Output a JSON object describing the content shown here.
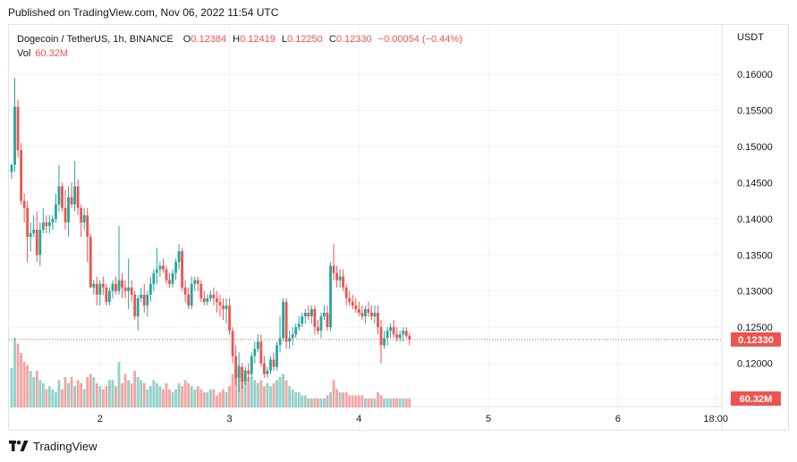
{
  "published": "Published on TradingView.com, Nov 06, 2022 11:54 UTC",
  "legend": {
    "symbol": "Dogecoin / TetherUS, 1h, BINANCE",
    "open_label": "O",
    "open": "0.12384",
    "high_label": "H",
    "high": "0.12419",
    "low_label": "L",
    "low": "0.12250",
    "close_label": "C",
    "close": "0.12330",
    "change": "−0.00054 (−0.44%)",
    "volume_label": "Vol",
    "volume": "60.32M"
  },
  "currency": "USDT",
  "price_labels": [
    "0.16000",
    "0.15500",
    "0.15000",
    "0.14500",
    "0.14000",
    "0.13500",
    "0.13000",
    "0.12500",
    "0.12000",
    "0.11500"
  ],
  "time_labels": [
    "2",
    "3",
    "4",
    "5",
    "6",
    "18:00"
  ],
  "last_price_badge": "0.12330",
  "volume_badge": "60.32M",
  "footer": {
    "brand": "TradingView",
    "logo_icon": "tradingview-logo-icon"
  },
  "colors": {
    "up": "#26a69a",
    "down": "#ef5350",
    "vol_up": "#8fd1c9",
    "vol_down": "#f5a3a1",
    "grid": "#f0f3fa"
  },
  "chart_data": {
    "type": "candlestick",
    "title": "Dogecoin / TetherUS, 1h, BINANCE",
    "price_axis": {
      "min": 0.1145,
      "max": 0.1625,
      "ticks": [
        0.16,
        0.155,
        0.15,
        0.145,
        0.14,
        0.135,
        0.13,
        0.125,
        0.12,
        0.115
      ]
    },
    "x_ticks": [
      {
        "label": "2",
        "index": 28
      },
      {
        "label": "3",
        "index": 69
      },
      {
        "label": "4",
        "index": 110
      },
      {
        "label": "5",
        "index": 151
      },
      {
        "label": "6",
        "index": 192
      },
      {
        "label": "18:00",
        "index": 223
      }
    ],
    "last_price": 0.1233,
    "candles": [
      [
        0.1465,
        0.1475,
        0.1455,
        0.1475,
        13
      ],
      [
        0.1475,
        0.1595,
        0.1465,
        0.1555,
        23
      ],
      [
        0.1555,
        0.1565,
        0.1485,
        0.1495,
        21
      ],
      [
        0.1495,
        0.1505,
        0.142,
        0.1425,
        18
      ],
      [
        0.1425,
        0.1435,
        0.1395,
        0.1415,
        15
      ],
      [
        0.1415,
        0.1425,
        0.134,
        0.1375,
        14
      ],
      [
        0.1375,
        0.1395,
        0.1355,
        0.138,
        12
      ],
      [
        0.138,
        0.1405,
        0.1375,
        0.1385,
        10
      ],
      [
        0.1385,
        0.141,
        0.134,
        0.135,
        12
      ],
      [
        0.135,
        0.1395,
        0.1335,
        0.1385,
        9
      ],
      [
        0.1385,
        0.1415,
        0.138,
        0.1395,
        8
      ],
      [
        0.1395,
        0.1405,
        0.138,
        0.139,
        6
      ],
      [
        0.139,
        0.1405,
        0.138,
        0.1395,
        7
      ],
      [
        0.1395,
        0.1405,
        0.1385,
        0.14,
        6
      ],
      [
        0.14,
        0.1435,
        0.1395,
        0.142,
        5
      ],
      [
        0.142,
        0.1475,
        0.141,
        0.1445,
        9
      ],
      [
        0.1445,
        0.145,
        0.141,
        0.1415,
        6
      ],
      [
        0.1415,
        0.144,
        0.1385,
        0.1395,
        10
      ],
      [
        0.1395,
        0.1445,
        0.1375,
        0.143,
        8
      ],
      [
        0.143,
        0.145,
        0.1415,
        0.142,
        10
      ],
      [
        0.142,
        0.148,
        0.141,
        0.1445,
        7
      ],
      [
        0.1445,
        0.1455,
        0.1405,
        0.1415,
        9
      ],
      [
        0.1415,
        0.142,
        0.1375,
        0.1395,
        8
      ],
      [
        0.1395,
        0.1415,
        0.1385,
        0.1405,
        6
      ],
      [
        0.1405,
        0.1415,
        0.134,
        0.1375,
        10
      ],
      [
        0.1375,
        0.138,
        0.1305,
        0.1305,
        11
      ],
      [
        0.1305,
        0.1315,
        0.1295,
        0.131,
        10
      ],
      [
        0.131,
        0.132,
        0.128,
        0.1295,
        8
      ],
      [
        0.1295,
        0.1315,
        0.128,
        0.131,
        7
      ],
      [
        0.131,
        0.132,
        0.1295,
        0.1305,
        6
      ],
      [
        0.1305,
        0.131,
        0.128,
        0.1285,
        7
      ],
      [
        0.1285,
        0.1305,
        0.128,
        0.13,
        9
      ],
      [
        0.13,
        0.1315,
        0.129,
        0.131,
        9
      ],
      [
        0.131,
        0.132,
        0.1295,
        0.13,
        7
      ],
      [
        0.13,
        0.139,
        0.1295,
        0.1315,
        15
      ],
      [
        0.1315,
        0.1325,
        0.129,
        0.1305,
        8
      ],
      [
        0.1305,
        0.1315,
        0.129,
        0.13,
        11
      ],
      [
        0.13,
        0.1345,
        0.1275,
        0.1305,
        9
      ],
      [
        0.1305,
        0.1315,
        0.1285,
        0.1295,
        8
      ],
      [
        0.1295,
        0.13,
        0.126,
        0.1265,
        12
      ],
      [
        0.1265,
        0.1295,
        0.1245,
        0.129,
        10
      ],
      [
        0.129,
        0.1305,
        0.1285,
        0.1295,
        9
      ],
      [
        0.1295,
        0.131,
        0.127,
        0.128,
        8
      ],
      [
        0.128,
        0.13,
        0.1265,
        0.1295,
        6
      ],
      [
        0.1295,
        0.132,
        0.1285,
        0.131,
        7
      ],
      [
        0.131,
        0.133,
        0.13,
        0.1325,
        9
      ],
      [
        0.1325,
        0.136,
        0.131,
        0.133,
        8
      ],
      [
        0.133,
        0.134,
        0.132,
        0.1335,
        7
      ],
      [
        0.1335,
        0.1345,
        0.1325,
        0.133,
        6
      ],
      [
        0.133,
        0.1335,
        0.131,
        0.1315,
        8
      ],
      [
        0.1315,
        0.1325,
        0.1305,
        0.131,
        6
      ],
      [
        0.131,
        0.133,
        0.1305,
        0.1325,
        5
      ],
      [
        0.1325,
        0.1345,
        0.1315,
        0.134,
        6
      ],
      [
        0.134,
        0.1365,
        0.133,
        0.1355,
        8
      ],
      [
        0.1355,
        0.136,
        0.13,
        0.1305,
        7
      ],
      [
        0.1305,
        0.1315,
        0.1285,
        0.1295,
        9
      ],
      [
        0.1295,
        0.1305,
        0.1275,
        0.128,
        8
      ],
      [
        0.128,
        0.132,
        0.1275,
        0.131,
        7
      ],
      [
        0.131,
        0.132,
        0.13,
        0.1315,
        6
      ],
      [
        0.1315,
        0.132,
        0.13,
        0.131,
        7
      ],
      [
        0.131,
        0.1315,
        0.1285,
        0.129,
        6
      ],
      [
        0.129,
        0.13,
        0.128,
        0.1285,
        5
      ],
      [
        0.1285,
        0.1295,
        0.128,
        0.129,
        5
      ],
      [
        0.129,
        0.13,
        0.1285,
        0.1295,
        6
      ],
      [
        0.1295,
        0.1305,
        0.128,
        0.129,
        6
      ],
      [
        0.129,
        0.13,
        0.127,
        0.1285,
        4
      ],
      [
        0.1285,
        0.1295,
        0.1265,
        0.128,
        5
      ],
      [
        0.128,
        0.129,
        0.126,
        0.1275,
        6
      ],
      [
        0.1275,
        0.129,
        0.1255,
        0.128,
        5
      ],
      [
        0.128,
        0.129,
        0.124,
        0.1245,
        7
      ],
      [
        0.1245,
        0.125,
        0.12,
        0.121,
        11
      ],
      [
        0.121,
        0.1225,
        0.117,
        0.118,
        14
      ],
      [
        0.118,
        0.1215,
        0.116,
        0.1195,
        14
      ],
      [
        0.1195,
        0.12,
        0.1165,
        0.1175,
        13
      ],
      [
        0.1175,
        0.1195,
        0.117,
        0.119,
        12
      ],
      [
        0.119,
        0.12,
        0.1175,
        0.1185,
        10
      ],
      [
        0.1185,
        0.1215,
        0.118,
        0.121,
        10
      ],
      [
        0.121,
        0.123,
        0.12,
        0.122,
        9
      ],
      [
        0.122,
        0.124,
        0.1215,
        0.123,
        8
      ],
      [
        0.123,
        0.124,
        0.1195,
        0.12,
        9
      ],
      [
        0.12,
        0.121,
        0.118,
        0.1185,
        7
      ],
      [
        0.1185,
        0.1195,
        0.118,
        0.119,
        8
      ],
      [
        0.119,
        0.121,
        0.1185,
        0.1205,
        7
      ],
      [
        0.1205,
        0.1215,
        0.119,
        0.1195,
        8
      ],
      [
        0.1195,
        0.123,
        0.119,
        0.1225,
        9
      ],
      [
        0.1225,
        0.1265,
        0.1215,
        0.1235,
        10
      ],
      [
        0.1235,
        0.129,
        0.123,
        0.1285,
        11
      ],
      [
        0.1285,
        0.129,
        0.122,
        0.123,
        9
      ],
      [
        0.123,
        0.1245,
        0.122,
        0.1235,
        7
      ],
      [
        0.1235,
        0.125,
        0.1225,
        0.124,
        6
      ],
      [
        0.124,
        0.1255,
        0.1235,
        0.125,
        5
      ],
      [
        0.125,
        0.1265,
        0.1245,
        0.1255,
        5
      ],
      [
        0.1255,
        0.127,
        0.125,
        0.1265,
        4
      ],
      [
        0.1265,
        0.1275,
        0.1255,
        0.127,
        4
      ],
      [
        0.127,
        0.128,
        0.126,
        0.1265,
        3
      ],
      [
        0.1265,
        0.128,
        0.1255,
        0.1275,
        3
      ],
      [
        0.1275,
        0.128,
        0.124,
        0.125,
        3
      ],
      [
        0.125,
        0.126,
        0.124,
        0.1245,
        3
      ],
      [
        0.1245,
        0.127,
        0.1235,
        0.1265,
        3
      ],
      [
        0.1265,
        0.128,
        0.126,
        0.127,
        3
      ],
      [
        0.127,
        0.128,
        0.1245,
        0.125,
        4
      ],
      [
        0.125,
        0.134,
        0.1245,
        0.1335,
        5
      ],
      [
        0.1335,
        0.1365,
        0.1315,
        0.1325,
        9
      ],
      [
        0.1325,
        0.1335,
        0.1305,
        0.1315,
        6
      ],
      [
        0.1315,
        0.133,
        0.1305,
        0.132,
        5
      ],
      [
        0.132,
        0.133,
        0.13,
        0.1305,
        5
      ],
      [
        0.1305,
        0.131,
        0.128,
        0.129,
        5
      ],
      [
        0.129,
        0.13,
        0.128,
        0.1285,
        4
      ],
      [
        0.1285,
        0.1295,
        0.1275,
        0.128,
        4
      ],
      [
        0.128,
        0.129,
        0.127,
        0.1275,
        4
      ],
      [
        0.1275,
        0.1285,
        0.1265,
        0.127,
        4
      ],
      [
        0.127,
        0.128,
        0.126,
        0.1265,
        4
      ],
      [
        0.1265,
        0.128,
        0.1255,
        0.1275,
        3
      ],
      [
        0.1275,
        0.1285,
        0.1265,
        0.127,
        3
      ],
      [
        0.127,
        0.128,
        0.126,
        0.1265,
        3
      ],
      [
        0.1265,
        0.128,
        0.1255,
        0.127,
        3
      ],
      [
        0.127,
        0.128,
        0.124,
        0.125,
        5
      ],
      [
        0.125,
        0.126,
        0.12,
        0.1225,
        4
      ],
      [
        0.1225,
        0.1245,
        0.122,
        0.1235,
        3
      ],
      [
        0.1235,
        0.125,
        0.1225,
        0.1245,
        3
      ],
      [
        0.1245,
        0.1255,
        0.1235,
        0.125,
        3
      ],
      [
        0.125,
        0.126,
        0.1235,
        0.124,
        3
      ],
      [
        0.124,
        0.125,
        0.123,
        0.1235,
        3
      ],
      [
        0.1235,
        0.1245,
        0.123,
        0.124,
        3
      ],
      [
        0.124,
        0.125,
        0.123,
        0.1245,
        3
      ],
      [
        0.1245,
        0.125,
        0.1235,
        0.1238,
        3
      ],
      [
        0.1238,
        0.1242,
        0.1225,
        0.1233,
        3
      ]
    ]
  }
}
